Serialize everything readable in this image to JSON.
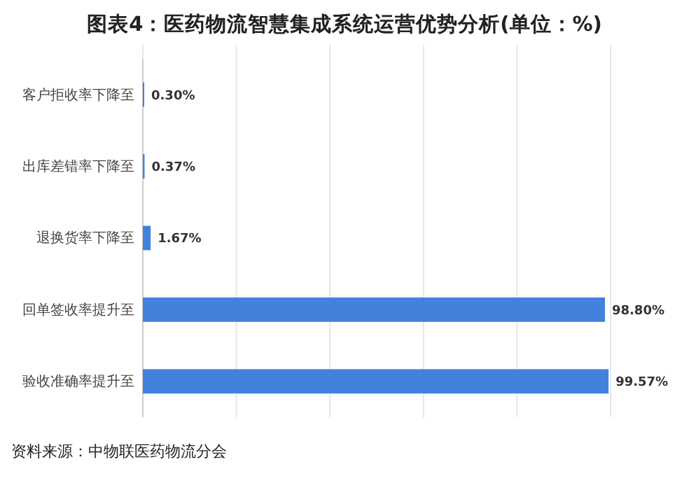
{
  "chart_data": {
    "type": "bar",
    "orientation": "horizontal",
    "title": "图表4：医药物流智慧集成系统运营优势分析(单位：%)",
    "categories": [
      "客户拒收率下降至",
      "出库差错率下降至",
      "退换货率下降至",
      "回单签收率提升至",
      "验收准确率提升至"
    ],
    "values": [
      0.3,
      0.37,
      1.67,
      98.8,
      99.57
    ],
    "value_labels": [
      "0.30%",
      "0.37%",
      "1.67%",
      "98.80%",
      "99.57%"
    ],
    "color": "#4282dd",
    "xlim": [
      0,
      100
    ],
    "xticks": [
      {
        "value": 0,
        "label": null
      },
      {
        "value": 20,
        "label": null
      },
      {
        "value": 40,
        "label": null
      },
      {
        "value": 60,
        "label": null
      },
      {
        "value": 80,
        "label": null
      },
      {
        "value": 100,
        "label": null
      }
    ],
    "grid": "x",
    "tick_labels": "y",
    "annotations": [
      "资料来源：中物联医药物流分会"
    ]
  }
}
